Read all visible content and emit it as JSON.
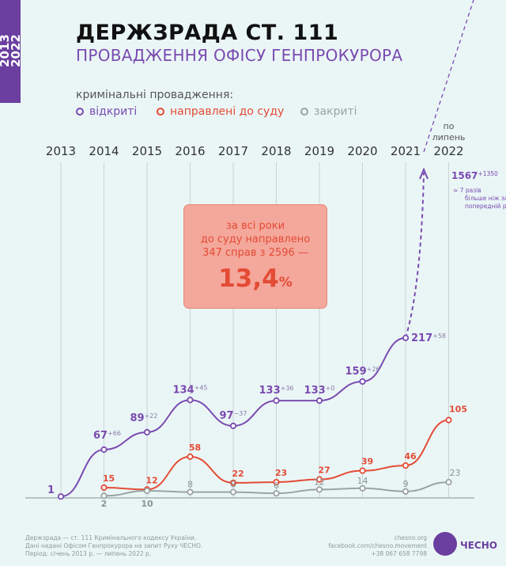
{
  "badge": "2013\n2022",
  "title": "ДЕРЖЗРАДА СТ. 111",
  "subtitle": "ПРОВАДЖЕННЯ ОФІСУ ГЕНПРОКУРОРА",
  "legend_title": "кримінальні провадження:",
  "legend": [
    {
      "label": "відкриті",
      "color": "#7a4ab0"
    },
    {
      "label": "направлені до суду",
      "color": "#e44b35"
    },
    {
      "label": "закриті",
      "color": "#9aa3a3"
    }
  ],
  "callout": {
    "text": "за всі роки\nдо суду направлено\n347 справ з 2596 —",
    "big": "13,4",
    "unit": "%"
  },
  "chart_data": {
    "type": "line",
    "categories": [
      "2013",
      "2014",
      "2015",
      "2016",
      "2017",
      "2018",
      "2019",
      "2020",
      "2021",
      "2022"
    ],
    "category_note": "по\nлипень",
    "series": [
      {
        "name": "відкриті",
        "color": "#7a4ab0",
        "values": [
          1,
          67,
          89,
          134,
          97,
          133,
          133,
          159,
          217,
          1567
        ],
        "deltas": [
          "",
          "+66",
          "+22",
          "+45",
          "−37",
          "+36",
          "+0",
          "+26",
          "+58",
          "+1350"
        ]
      },
      {
        "name": "направлені до суду",
        "color": "#e44b35",
        "values": [
          null,
          15,
          12,
          58,
          22,
          23,
          27,
          39,
          46,
          105
        ]
      },
      {
        "name": "закриті",
        "color": "#9aa3a3",
        "values": [
          null,
          2,
          10,
          8,
          8,
          6,
          12,
          14,
          9,
          23
        ]
      }
    ],
    "annotation_2022": "≈ 7 разів\nбільше ніж за\nпопередній рік"
  },
  "footer_left": "Держзрада — ст. 111 Кримінального кодексу України.\nДані надані Офісом Генпрокурора на запит Руху ЧЕСНО.\nПеріод: січень 2013 р. — липень 2022 р.",
  "footer_right": "chesno.org\nfacebook.com/chesno.movement\n+38 067 658 7798",
  "logo_text": "ЧЕСНО"
}
